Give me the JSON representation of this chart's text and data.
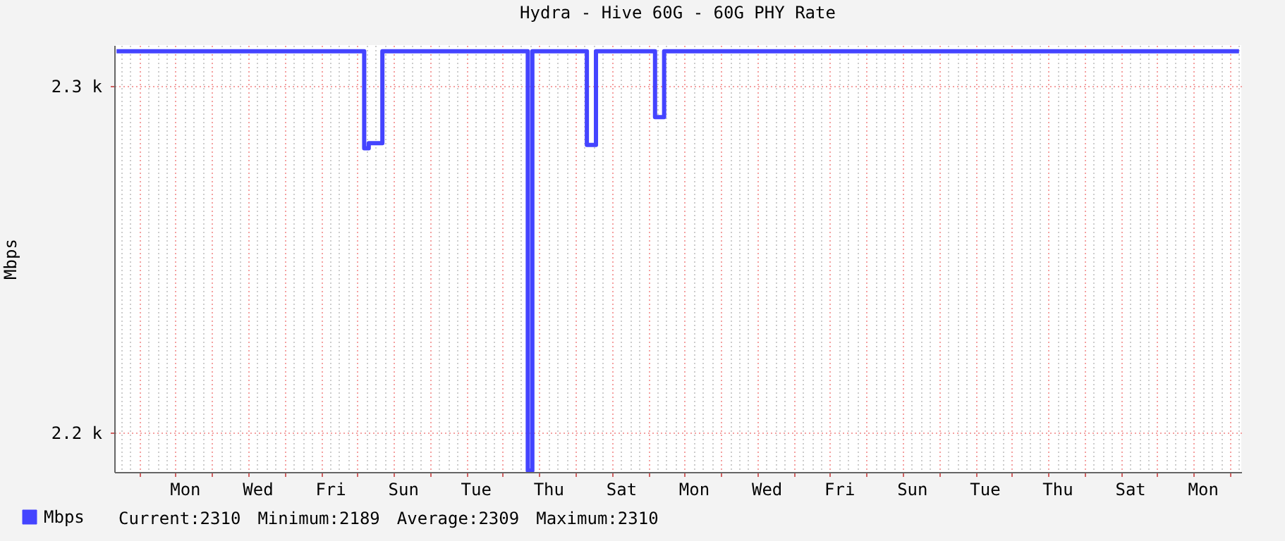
{
  "chart_data": {
    "type": "step",
    "title": "Hydra - Hive 60G - 60G PHY Rate",
    "ylabel": "Mbps",
    "categories": [
      null,
      null,
      null,
      null,
      null,
      null,
      null,
      null,
      null,
      null,
      null,
      null,
      null,
      null,
      null,
      "Mon",
      null,
      null,
      null,
      null,
      null,
      null,
      null,
      null,
      null,
      null,
      null,
      null,
      null,
      null,
      null,
      "Wed",
      null,
      null,
      null,
      null,
      null,
      null,
      null,
      null,
      null,
      null,
      null,
      null,
      null,
      null,
      null,
      "Fri",
      null,
      null,
      null,
      null,
      null,
      null,
      null,
      null,
      null,
      null,
      null,
      null,
      null,
      null,
      null,
      "Sun",
      null,
      null,
      null,
      null,
      null,
      null,
      null,
      null,
      null,
      null,
      null,
      null,
      null,
      null,
      null,
      "Tue",
      null,
      null,
      null,
      null,
      null,
      null,
      null,
      null,
      null,
      null,
      null,
      null,
      null,
      null,
      null,
      "Thu",
      null,
      null,
      null,
      null,
      null,
      null,
      null,
      null,
      null,
      null,
      null,
      null,
      null,
      null,
      null,
      "Sat",
      null,
      null,
      null,
      null,
      null,
      null,
      null,
      null,
      null,
      null,
      null,
      null,
      null,
      null,
      null,
      "Mon",
      null,
      null,
      null,
      null,
      null,
      null,
      null,
      null,
      null,
      null,
      null,
      null,
      null,
      null,
      null,
      "Wed",
      null,
      null,
      null,
      null,
      null,
      null,
      null,
      null,
      null,
      null,
      null,
      null,
      null,
      null,
      null,
      "Fri",
      null,
      null,
      null,
      null,
      null,
      null,
      null,
      null,
      null,
      null,
      null,
      null,
      null,
      null,
      null,
      "Sun",
      null,
      null,
      null,
      null,
      null,
      null,
      null,
      null,
      null,
      null,
      null,
      null,
      null,
      null,
      null,
      "Tue",
      null,
      null,
      null,
      null,
      null,
      null,
      null,
      null,
      null,
      null,
      null,
      null,
      null,
      null,
      null,
      "Thu",
      null,
      null,
      null,
      null,
      null,
      null,
      null,
      null,
      null,
      null,
      null,
      null,
      null,
      null,
      null,
      "Sat",
      null,
      null,
      null,
      null,
      null,
      null,
      null,
      null,
      null,
      null,
      null,
      null,
      null,
      null,
      null,
      "Mon",
      null,
      null,
      null,
      null,
      null,
      null,
      null,
      null
    ],
    "series": [
      {
        "name": "Mbps",
        "color": "#4444ff",
        "values": [
          2310,
          2310,
          2310,
          2310,
          2310,
          2310,
          2310,
          2310,
          2310,
          2310,
          2310,
          2310,
          2310,
          2310,
          2310,
          2310,
          2310,
          2310,
          2310,
          2310,
          2310,
          2310,
          2310,
          2310,
          2310,
          2310,
          2310,
          2310,
          2310,
          2310,
          2310,
          2310,
          2310,
          2310,
          2310,
          2310,
          2310,
          2310,
          2310,
          2310,
          2310,
          2310,
          2310,
          2310,
          2310,
          2310,
          2310,
          2310,
          2310,
          2310,
          2310,
          2310,
          2310,
          2310,
          2310,
          2282,
          2283.5,
          2283.5,
          2283.5,
          2310,
          2310,
          2310,
          2310,
          2310,
          2310,
          2310,
          2310,
          2310,
          2310,
          2310,
          2310,
          2310,
          2310,
          2310,
          2310,
          2310,
          2310,
          2310,
          2310,
          2310,
          2310,
          2310,
          2310,
          2310,
          2310,
          2310,
          2310,
          2310,
          2310,
          2310,
          2310,
          2189,
          2310,
          2310,
          2310,
          2310,
          2310,
          2310,
          2310,
          2310,
          2310,
          2310,
          2310,
          2310,
          2283,
          2283,
          2310,
          2310,
          2310,
          2310,
          2310,
          2310,
          2310,
          2310,
          2310,
          2310,
          2310,
          2310,
          2310,
          2291,
          2291,
          2310,
          2310,
          2310,
          2310,
          2310,
          2310,
          2310,
          2310,
          2310,
          2310,
          2310,
          2310,
          2310,
          2310,
          2310,
          2310,
          2310,
          2310,
          2310,
          2310,
          2310,
          2310,
          2310,
          2310,
          2310,
          2310,
          2310,
          2310,
          2310,
          2310,
          2310,
          2310,
          2310,
          2310,
          2310,
          2310,
          2310,
          2310,
          2310,
          2310,
          2310,
          2310,
          2310,
          2310,
          2310,
          2310,
          2310,
          2310,
          2310,
          2310,
          2310,
          2310,
          2310,
          2310,
          2310,
          2310,
          2310,
          2310,
          2310,
          2310,
          2310,
          2310,
          2310,
          2310,
          2310,
          2310,
          2310,
          2310,
          2310,
          2310,
          2310,
          2310,
          2310,
          2310,
          2310,
          2310,
          2310,
          2310,
          2310,
          2310,
          2310,
          2310,
          2310,
          2310,
          2310,
          2310,
          2310,
          2310,
          2310,
          2310,
          2310,
          2310,
          2310,
          2310,
          2310,
          2310,
          2310,
          2310,
          2310,
          2310,
          2310,
          2310,
          2310,
          2310,
          2310,
          2310,
          2310,
          2310,
          2310,
          2310,
          2310,
          2310,
          2310,
          2310,
          2310,
          2310,
          2310,
          2310,
          2310,
          2310,
          2310,
          2310,
          2310,
          2310,
          2310,
          2310,
          2310
        ]
      }
    ],
    "ylim": [
      2188.6,
      2311.8
    ],
    "yticks": [
      {
        "value": 2200,
        "label": "2.2 k"
      },
      {
        "value": 2300,
        "label": "2.3 k"
      }
    ],
    "grid": true,
    "legend": "bottom left",
    "annotations": [
      "Current:2310",
      "Minimum:2189",
      "Average:2309",
      "Maximum:2310"
    ]
  }
}
